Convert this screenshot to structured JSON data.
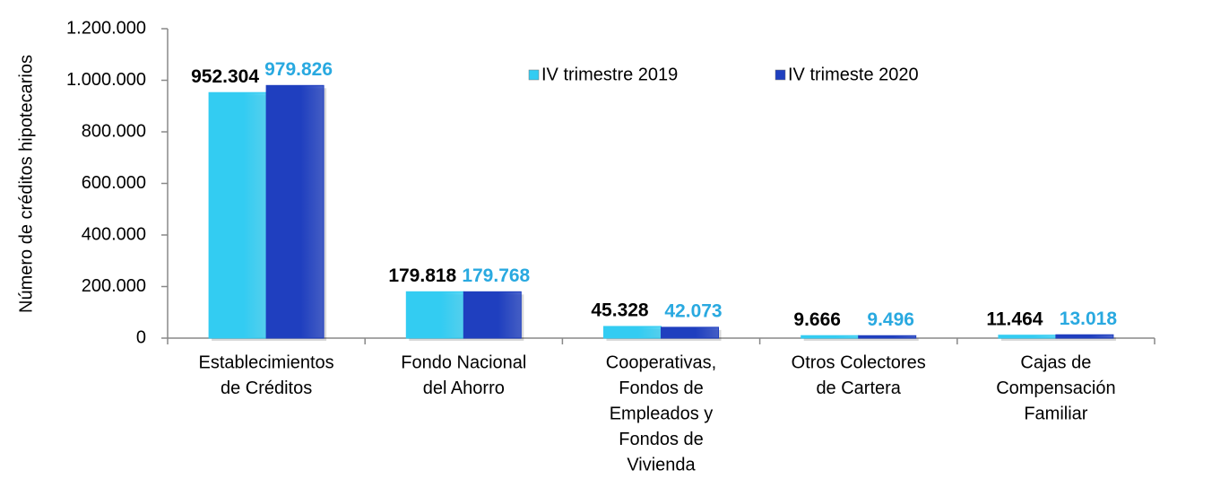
{
  "chart_data": {
    "type": "bar",
    "y_label": "Número de créditos hipotecarios",
    "categories": [
      [
        "Establecimientos",
        "de Créditos"
      ],
      [
        "Fondo Nacional",
        "del Ahorro"
      ],
      [
        "Cooperativas,",
        "Fondos de",
        "Empleados y",
        "Fondos de",
        "Vivienda"
      ],
      [
        "Otros Colectores",
        "de Cartera"
      ],
      [
        "Cajas de",
        "Compensación",
        "Familiar"
      ]
    ],
    "series": [
      {
        "name": "IV trimestre 2019",
        "color": "#33ccf2",
        "label_color": "#000000",
        "values": [
          952304,
          179818,
          45328,
          9666,
          11464
        ],
        "value_labels": [
          "952.304",
          "179.818",
          "45.328",
          "9.666",
          "11.464"
        ]
      },
      {
        "name": "IV trimeste 2020",
        "color": "#1f3fbf",
        "label_color": "#29a9e0",
        "values": [
          979826,
          179768,
          42073,
          9496,
          13018
        ],
        "value_labels": [
          "979.826",
          "179.768",
          "42.073",
          "9.496",
          "13.018"
        ]
      }
    ],
    "ylim": [
      0,
      1200000
    ],
    "yticks": [
      0,
      {
        "value": 200000,
        "label": "200.000"
      },
      {
        "value": 400000,
        "label": "400.000"
      },
      {
        "value": 600000,
        "label": "600.000"
      },
      {
        "value": 800000,
        "label": "800.000"
      },
      {
        "value": 1000000,
        "label": "1.000.000"
      },
      {
        "value": 1200000,
        "label": "1.200.000"
      }
    ],
    "grid": false,
    "legend": "top"
  }
}
